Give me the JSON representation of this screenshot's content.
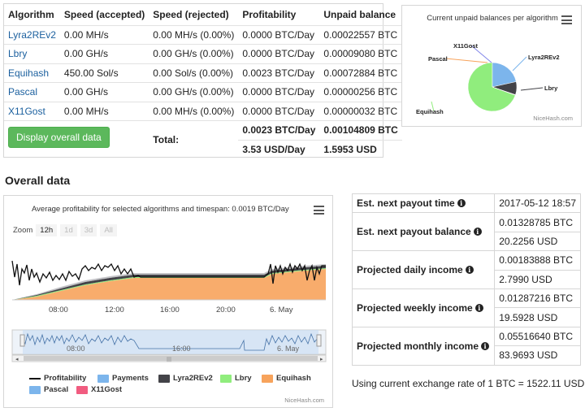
{
  "algo_table": {
    "headers": [
      "Algorithm",
      "Speed (accepted)",
      "Speed (rejected)",
      "Profitability",
      "Unpaid balance"
    ],
    "rows": [
      {
        "algorithm": "Lyra2REv2",
        "accepted": "0.00 MH/s",
        "rejected": "0.00 MH/s (0.00%)",
        "profitability": "0.0000 BTC/Day",
        "unpaid": "0.00022557 BTC"
      },
      {
        "algorithm": "Lbry",
        "accepted": "0.00 GH/s",
        "rejected": "0.00 GH/s (0.00%)",
        "profitability": "0.0000 BTC/Day",
        "unpaid": "0.00009080 BTC"
      },
      {
        "algorithm": "Equihash",
        "accepted": "450.00 Sol/s",
        "rejected": "0.00 Sol/s (0.00%)",
        "profitability": "0.0023 BTC/Day",
        "unpaid": "0.00072884 BTC"
      },
      {
        "algorithm": "Pascal",
        "accepted": "0.00 GH/s",
        "rejected": "0.00 GH/s (0.00%)",
        "profitability": "0.0000 BTC/Day",
        "unpaid": "0.00000256 BTC"
      },
      {
        "algorithm": "X11Gost",
        "accepted": "0.00 MH/s",
        "rejected": "0.00 MH/s (0.00%)",
        "profitability": "0.0000 BTC/Day",
        "unpaid": "0.00000032 BTC"
      }
    ],
    "display_button": "Display overall data",
    "total_label": "Total:",
    "total_btc_day": "0.0023 BTC/Day",
    "total_unpaid_btc": "0.00104809 BTC",
    "total_usd_day": "3.53 USD/Day",
    "total_unpaid_usd": "1.5953 USD"
  },
  "pie_chart": {
    "title": "Current unpaid balances per algorithm",
    "credit": "NiceHash.com",
    "menu_icon": "hamburger-menu-icon"
  },
  "overall": {
    "heading": "Overall data"
  },
  "profit_chart": {
    "title": "Average profitability for selected algorithms and timespan: 0.0019 BTC/Day",
    "zoom_label": "Zoom",
    "zoom_buttons": [
      "12h",
      "1d",
      "3d",
      "All"
    ],
    "x_ticks": [
      "08:00",
      "12:00",
      "16:00",
      "20:00",
      "6. May"
    ],
    "nav_ticks": [
      "08:00",
      "16:00",
      "6. May"
    ],
    "legend": [
      {
        "name": "Profitability",
        "color": "#111111",
        "kind": "line"
      },
      {
        "name": "Payments",
        "color": "#7cb5ec",
        "kind": "box"
      },
      {
        "name": "Lyra2REv2",
        "color": "#434348",
        "kind": "box"
      },
      {
        "name": "Lbry",
        "color": "#90ed7d",
        "kind": "box"
      },
      {
        "name": "Equihash",
        "color": "#f7a35c",
        "kind": "box"
      },
      {
        "name": "Pascal",
        "color": "#7cb5ec",
        "kind": "box"
      },
      {
        "name": "X11Gost",
        "color": "#f15c80",
        "kind": "box"
      }
    ],
    "credit": "NiceHash.com"
  },
  "chart_data": [
    {
      "type": "pie",
      "title": "Current unpaid balances per algorithm",
      "labels": [
        "Equihash",
        "Lyra2REv2",
        "Lbry",
        "Pascal",
        "X11Gost"
      ],
      "values": [
        0.00072884,
        0.00022557,
        9.08e-05,
        2.56e-06,
        3.2e-07
      ],
      "colors": [
        "#90ed7d",
        "#7cb5ec",
        "#434348",
        "#f7a35c",
        "#8085e9"
      ]
    },
    {
      "type": "area",
      "title": "Average profitability for selected algorithms and timespan: 0.0019 BTC/Day",
      "x_ticks": [
        "08:00",
        "12:00",
        "16:00",
        "20:00",
        "6. May"
      ],
      "series": [
        {
          "name": "Equihash",
          "color": "#f7a35c"
        },
        {
          "name": "Lbry",
          "color": "#90ed7d"
        },
        {
          "name": "Lyra2REv2",
          "color": "#434348"
        },
        {
          "name": "Profitability",
          "color": "#111111"
        }
      ]
    }
  ],
  "payout": {
    "rows": [
      {
        "label": "Est. next payout time",
        "values": [
          "2017-05-12 18:57"
        ]
      },
      {
        "label": "Est. next payout balance",
        "values": [
          "0.01328785 BTC",
          "20.2256 USD"
        ]
      },
      {
        "label": "Projected daily income",
        "values": [
          "0.00183888 BTC",
          "2.7990 USD"
        ]
      },
      {
        "label": "Projected weekly income",
        "values": [
          "0.01287216 BTC",
          "19.5928 USD"
        ]
      },
      {
        "label": "Projected monthly income",
        "values": [
          "0.05516640 BTC",
          "83.9693 USD"
        ]
      }
    ],
    "info_icon": "info-circle-icon",
    "rate_note": "Using current exchange rate of 1 BTC = 1522.11 USD"
  }
}
